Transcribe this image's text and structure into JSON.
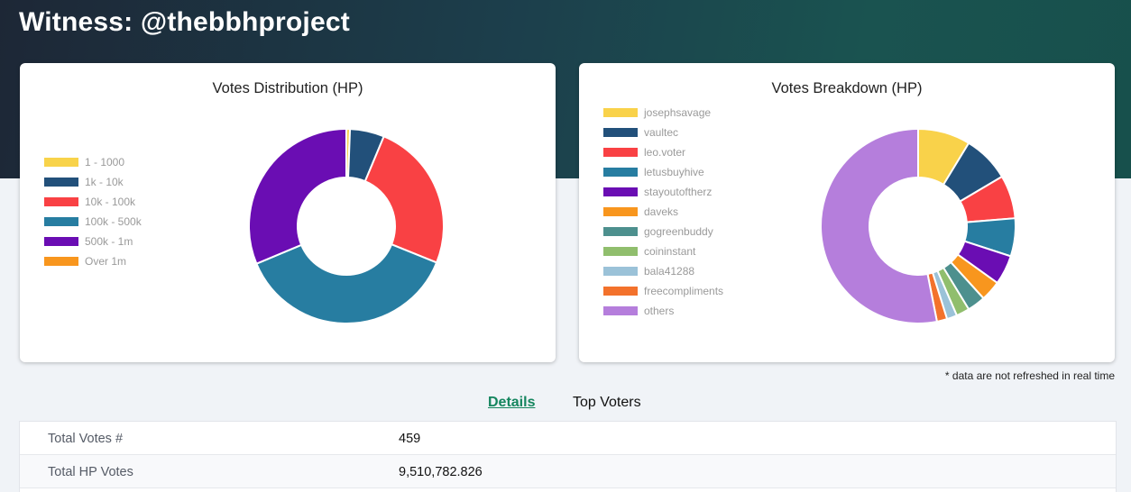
{
  "page": {
    "title": "Witness: @thebbhproject"
  },
  "charts": {
    "distribution": {
      "title": "Votes Distribution (HP)"
    },
    "breakdown": {
      "title": "Votes Breakdown (HP)"
    }
  },
  "chart_data": [
    {
      "type": "pie",
      "title": "Votes Distribution (HP)",
      "legend_position": "left",
      "categories": [
        "1 - 1000",
        "1k - 10k",
        "10k - 100k",
        "100k - 500k",
        "500k - 1m",
        "Over 1m"
      ],
      "values": [
        0.6,
        5.7,
        24.8,
        37.6,
        31.3,
        0
      ],
      "colors": [
        "#f8d34a",
        "#22507a",
        "#f94144",
        "#277da1",
        "#6a0db3",
        "#f8961e"
      ],
      "donut": true
    },
    {
      "type": "pie",
      "title": "Votes Breakdown (HP)",
      "legend_position": "top-left",
      "categories": [
        "josephsavage",
        "vaultec",
        "leo.voter",
        "letusbuyhive",
        "stayoutoftherz",
        "daveks",
        "gogreenbuddy",
        "coininstant",
        "bala41288",
        "freecompliments",
        "others"
      ],
      "values": [
        8.7,
        7.8,
        7.2,
        6.3,
        4.9,
        3.4,
        3.0,
        2.2,
        1.7,
        1.7,
        53.1
      ],
      "colors": [
        "#f9d24a",
        "#22507a",
        "#f94144",
        "#277da1",
        "#6a0db3",
        "#f8961e",
        "#4d908e",
        "#90be6d",
        "#9bc2d8",
        "#f3722c",
        "#b57edc"
      ],
      "donut": true
    }
  ],
  "footnote": "* data are not refreshed in real time",
  "tabs": {
    "details": "Details",
    "top_voters": "Top Voters"
  },
  "details": [
    {
      "label": "Total Votes #",
      "value": "459"
    },
    {
      "label": "Total HP Votes",
      "value": "9,510,782.826"
    }
  ]
}
